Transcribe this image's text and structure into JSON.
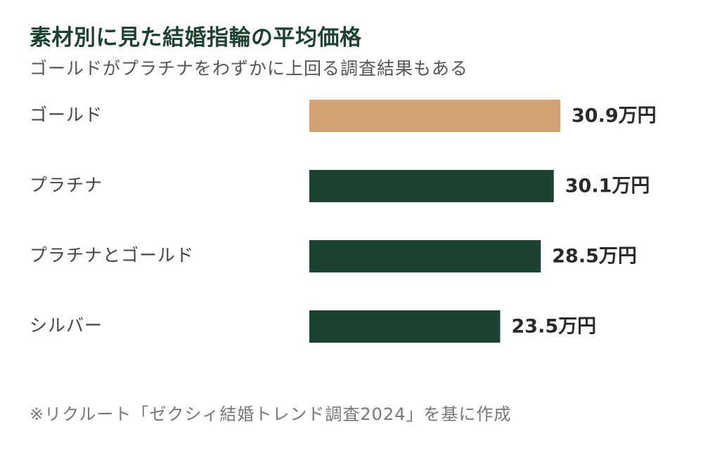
{
  "chart_data": {
    "type": "bar",
    "orientation": "horizontal",
    "title": "素材別に見た結婚指輪の平均価格",
    "subtitle": "ゴールドがプラチナをわずかに上回る調査結果もある",
    "categories": [
      "ゴールド",
      "プラチナ",
      "プラチナとゴールド",
      "シルバー"
    ],
    "values": [
      30.9,
      30.1,
      28.5,
      23.5
    ],
    "value_labels": [
      "30.9万円",
      "30.1万円",
      "28.5万円",
      "23.5万円"
    ],
    "unit": "万円",
    "bar_colors": [
      "#d3a272",
      "#1c4332",
      "#1c4332",
      "#1c4332"
    ],
    "xlim": [
      0,
      30.9
    ],
    "grid": false,
    "note": "※リクルート「ゼクシィ結婚トレンド調査2024」を基に作成"
  }
}
